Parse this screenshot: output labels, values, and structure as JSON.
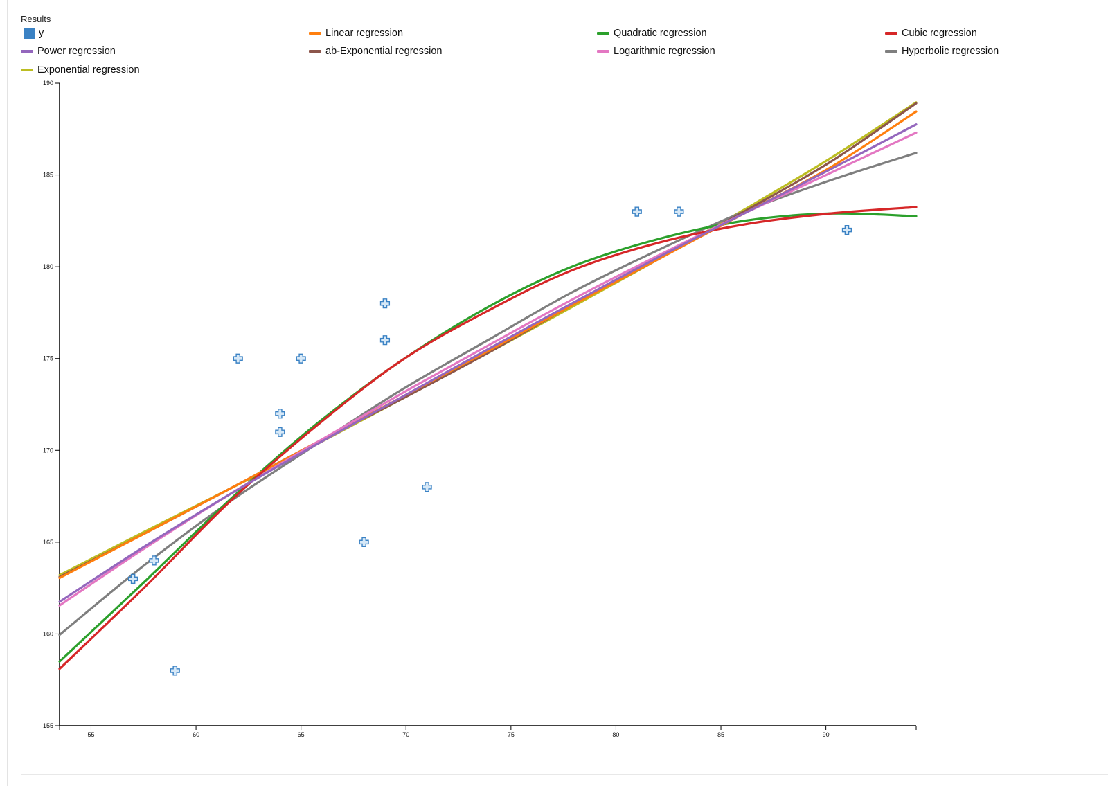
{
  "panel": {
    "title": "Results"
  },
  "legend": [
    {
      "label": "y",
      "color": "#3b82c4",
      "marker": "square"
    },
    {
      "label": "Linear regression",
      "color": "#ff7f0e",
      "marker": "line"
    },
    {
      "label": "Quadratic regression",
      "color": "#2ca02c",
      "marker": "line"
    },
    {
      "label": "Cubic regression",
      "color": "#d62728",
      "marker": "line"
    },
    {
      "label": "Power regression",
      "color": "#9467bd",
      "marker": "line"
    },
    {
      "label": "ab-Exponential regression",
      "color": "#8c564b",
      "marker": "line"
    },
    {
      "label": "Logarithmic regression",
      "color": "#e377c2",
      "marker": "line"
    },
    {
      "label": "Hyperbolic regression",
      "color": "#7f7f7f",
      "marker": "line"
    },
    {
      "label": "Exponential regression",
      "color": "#bcbd22",
      "marker": "line"
    }
  ],
  "chart_data": {
    "type": "scatter",
    "title": "",
    "xlabel": "",
    "ylabel": "",
    "xlim": [
      53.5,
      94.3
    ],
    "ylim": [
      155,
      190
    ],
    "xticks": [
      55,
      60,
      65,
      70,
      75,
      80,
      85,
      90
    ],
    "yticks": [
      155,
      160,
      165,
      170,
      175,
      180,
      185,
      190
    ],
    "grid": false,
    "legend_position": "top",
    "points": {
      "name": "y",
      "color": "#3b82c4",
      "marker": "plus",
      "x": [
        57,
        58,
        59,
        62,
        64,
        64,
        65,
        68,
        69,
        69,
        71,
        81,
        83,
        91
      ],
      "y": [
        163,
        164,
        158,
        175,
        172,
        171,
        175,
        165,
        178,
        176,
        168,
        183,
        183,
        182
      ]
    },
    "series": [
      {
        "name": "Linear regression",
        "color": "#ff7f0e",
        "x": [
          53.5,
          57.6,
          61.6,
          65.7,
          69.8,
          73.9,
          77.9,
          82,
          86.1,
          90.2,
          94.3
        ],
        "y": [
          163.05,
          165.5,
          167.9,
          170.4,
          172.9,
          175.4,
          177.9,
          180.4,
          182.9,
          185.4,
          188.45
        ]
      },
      {
        "name": "Quadratic regression",
        "color": "#2ca02c",
        "x": [
          53.5,
          57.6,
          61.6,
          65.7,
          69.8,
          73.9,
          77.9,
          82,
          86.1,
          90.2,
          94.3
        ],
        "y": [
          158.5,
          162.9,
          167.3,
          171.4,
          174.9,
          177.8,
          180.0,
          181.5,
          182.5,
          182.9,
          182.75
        ]
      },
      {
        "name": "Cubic regression",
        "color": "#d62728",
        "x": [
          53.5,
          57.6,
          61.6,
          65.7,
          69.8,
          73.9,
          77.9,
          82,
          86.1,
          90.2,
          94.3
        ],
        "y": [
          158.1,
          162.6,
          167.2,
          171.3,
          174.9,
          177.6,
          179.8,
          181.3,
          182.3,
          182.9,
          183.25
        ]
      },
      {
        "name": "Power regression",
        "color": "#9467bd",
        "x": [
          53.5,
          57.6,
          61.6,
          65.7,
          69.8,
          73.9,
          77.9,
          82,
          86.1,
          90.2,
          94.3
        ],
        "y": [
          161.75,
          164.8,
          167.6,
          170.3,
          172.9,
          175.5,
          178.0,
          180.5,
          182.9,
          185.3,
          187.75
        ]
      },
      {
        "name": "ab-Exponential regression",
        "color": "#8c564b",
        "x": [
          53.5,
          57.6,
          61.6,
          65.7,
          69.8,
          73.9,
          77.9,
          82,
          86.1,
          90.2,
          94.3
        ],
        "y": [
          163.1,
          165.5,
          167.9,
          170.4,
          172.8,
          175.3,
          177.9,
          180.4,
          183.0,
          185.7,
          188.9
        ]
      },
      {
        "name": "Logarithmic regression",
        "color": "#e377c2",
        "x": [
          53.5,
          57.6,
          61.6,
          65.7,
          69.8,
          73.9,
          77.9,
          82,
          86.1,
          90.2,
          94.3
        ],
        "y": [
          161.55,
          164.7,
          167.6,
          170.4,
          173.1,
          175.7,
          178.2,
          180.6,
          182.9,
          185.1,
          187.3
        ]
      },
      {
        "name": "Hyperbolic regression",
        "color": "#7f7f7f",
        "x": [
          53.5,
          57.6,
          61.6,
          65.7,
          69.8,
          73.9,
          77.9,
          82,
          86.1,
          90.2,
          94.3
        ],
        "y": [
          159.95,
          163.8,
          167.2,
          170.3,
          173.3,
          176.0,
          178.6,
          180.9,
          183.0,
          184.7,
          186.2
        ]
      },
      {
        "name": "Exponential regression",
        "color": "#bcbd22",
        "x": [
          53.5,
          57.6,
          61.6,
          65.7,
          69.8,
          73.9,
          77.9,
          82,
          86.1,
          90.2,
          94.3
        ],
        "y": [
          163.2,
          165.6,
          167.9,
          170.3,
          172.8,
          175.3,
          177.8,
          180.4,
          183.1,
          185.9,
          188.95
        ]
      }
    ]
  }
}
